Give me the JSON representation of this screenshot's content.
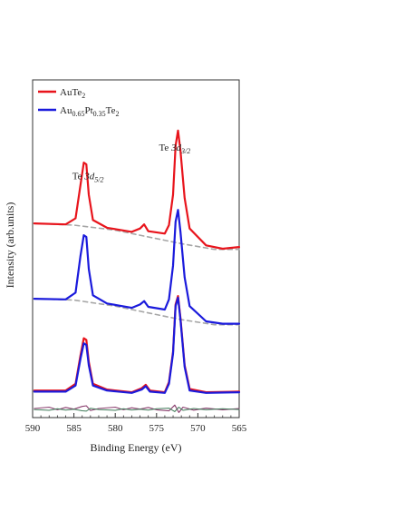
{
  "chart_data": {
    "type": "line",
    "xlabel": "Binding Energy (eV)",
    "ylabel": "Intensity (arb.units)",
    "xlim": [
      590,
      565
    ],
    "x_reversed": true,
    "xticks": [
      590,
      585,
      580,
      575,
      570,
      565
    ],
    "xtick_labels": [
      "590",
      "585",
      "580",
      "575",
      "570",
      "565"
    ],
    "ylim": [
      0,
      10
    ],
    "y_ticks_shown": false,
    "grid": false,
    "legend_position": "top-left",
    "legend": [
      {
        "base": "AuTe",
        "sub": "2",
        "color": "#e8141c",
        "series": "AuTe2"
      },
      {
        "base": "Au",
        "sub": "0.65",
        "mid": "Pt",
        "sub2": "0.35",
        "post": "Te",
        "sub3": "2",
        "color": "#1a1adc",
        "series": "Au0.65Pt0.35Te2"
      }
    ],
    "annotations": [
      {
        "prefix": "Te ",
        "italic": "3d",
        "sub": "5/2",
        "x": 583.3,
        "y": 7.05
      },
      {
        "prefix": "Te ",
        "italic": "3d",
        "sub": "3/2",
        "x": 572.8,
        "y": 7.9
      }
    ],
    "peaks": {
      "AuTe2": {
        "offset": 5.4,
        "background": [
          [
            589.8,
            0.35
          ],
          [
            585,
            0.3
          ],
          [
            580,
            0.15
          ],
          [
            576,
            -0.05
          ],
          [
            572,
            -0.25
          ],
          [
            568,
            -0.42
          ],
          [
            565,
            -0.42
          ]
        ],
        "points": [
          [
            589.8,
            0.35
          ],
          [
            586,
            0.32
          ],
          [
            584.8,
            0.5
          ],
          [
            584.2,
            1.5
          ],
          [
            583.8,
            2.15
          ],
          [
            583.5,
            2.1
          ],
          [
            583.2,
            1.2
          ],
          [
            582.7,
            0.45
          ],
          [
            581,
            0.22
          ],
          [
            578,
            0.1
          ],
          [
            577,
            0.2
          ],
          [
            576.5,
            0.32
          ],
          [
            576,
            0.12
          ],
          [
            574,
            0.05
          ],
          [
            573.5,
            0.3
          ],
          [
            573,
            1.2
          ],
          [
            572.7,
            2.65
          ],
          [
            572.4,
            3.1
          ],
          [
            572.1,
            2.5
          ],
          [
            571.6,
            1.1
          ],
          [
            571,
            0.2
          ],
          [
            569,
            -0.3
          ],
          [
            567,
            -0.4
          ],
          [
            565,
            -0.35
          ]
        ]
      },
      "Au0.65Pt0.35Te2": {
        "offset": 3.2,
        "background": [
          [
            589.8,
            0.32
          ],
          [
            585,
            0.28
          ],
          [
            580,
            0.1
          ],
          [
            576,
            -0.1
          ],
          [
            572,
            -0.3
          ],
          [
            568,
            -0.45
          ],
          [
            565,
            -0.45
          ]
        ],
        "points": [
          [
            589.8,
            0.32
          ],
          [
            586,
            0.3
          ],
          [
            584.8,
            0.5
          ],
          [
            584.2,
            1.6
          ],
          [
            583.8,
            2.2
          ],
          [
            583.5,
            2.15
          ],
          [
            583.2,
            1.2
          ],
          [
            582.7,
            0.42
          ],
          [
            581,
            0.18
          ],
          [
            578,
            0.05
          ],
          [
            577,
            0.15
          ],
          [
            576.5,
            0.25
          ],
          [
            576,
            0.08
          ],
          [
            574,
            0.0
          ],
          [
            573.5,
            0.3
          ],
          [
            573,
            1.3
          ],
          [
            572.7,
            2.6
          ],
          [
            572.4,
            2.95
          ],
          [
            572.1,
            2.3
          ],
          [
            571.6,
            0.95
          ],
          [
            571,
            0.1
          ],
          [
            569,
            -0.35
          ],
          [
            567,
            -0.42
          ],
          [
            565,
            -0.42
          ]
        ]
      },
      "overlay": {
        "offset": 0.75,
        "AuTe2": [
          [
            589.8,
            0.05
          ],
          [
            586,
            0.05
          ],
          [
            584.8,
            0.25
          ],
          [
            584.2,
            1.1
          ],
          [
            583.8,
            1.6
          ],
          [
            583.5,
            1.55
          ],
          [
            583.2,
            0.9
          ],
          [
            582.7,
            0.25
          ],
          [
            581,
            0.08
          ],
          [
            578,
            0.0
          ],
          [
            576.8,
            0.12
          ],
          [
            576.3,
            0.22
          ],
          [
            575.8,
            0.05
          ],
          [
            574,
            0.0
          ],
          [
            573.5,
            0.3
          ],
          [
            573,
            1.2
          ],
          [
            572.7,
            2.6
          ],
          [
            572.4,
            2.85
          ],
          [
            572.1,
            2.2
          ],
          [
            571.6,
            0.8
          ],
          [
            571,
            0.1
          ],
          [
            569,
            0.0
          ],
          [
            565,
            0.02
          ]
        ],
        "Au0.65Pt0.35Te2": [
          [
            589.8,
            0.02
          ],
          [
            586,
            0.02
          ],
          [
            584.8,
            0.2
          ],
          [
            584.2,
            1.0
          ],
          [
            583.8,
            1.45
          ],
          [
            583.5,
            1.4
          ],
          [
            583.2,
            0.8
          ],
          [
            582.7,
            0.2
          ],
          [
            581,
            0.05
          ],
          [
            578,
            -0.02
          ],
          [
            576.8,
            0.08
          ],
          [
            576.3,
            0.18
          ],
          [
            575.8,
            0.02
          ],
          [
            574,
            -0.02
          ],
          [
            573.5,
            0.25
          ],
          [
            573,
            1.15
          ],
          [
            572.7,
            2.55
          ],
          [
            572.4,
            2.8
          ],
          [
            572.1,
            2.15
          ],
          [
            571.6,
            0.75
          ],
          [
            571,
            0.05
          ],
          [
            569,
            -0.02
          ],
          [
            565,
            0.0
          ]
        ]
      },
      "difference": {
        "offset": 0.25,
        "points": [
          [
            589.8,
            0.02
          ],
          [
            588,
            0.06
          ],
          [
            587,
            -0.02
          ],
          [
            586,
            0.05
          ],
          [
            585,
            0.0
          ],
          [
            584,
            0.08
          ],
          [
            583.5,
            0.1
          ],
          [
            583,
            -0.04
          ],
          [
            582,
            0.02
          ],
          [
            580,
            0.06
          ],
          [
            579,
            -0.02
          ],
          [
            578,
            0.04
          ],
          [
            577,
            0.0
          ],
          [
            576,
            0.05
          ],
          [
            575,
            -0.02
          ],
          [
            573.5,
            -0.05
          ],
          [
            572.8,
            0.12
          ],
          [
            572.3,
            -0.1
          ],
          [
            571.8,
            0.06
          ],
          [
            570.5,
            -0.03
          ],
          [
            569,
            0.03
          ],
          [
            567,
            -0.02
          ],
          [
            565,
            0.02
          ]
        ]
      }
    }
  },
  "colors": {
    "AuTe2": "#e8141c",
    "Au0.65Pt0.35Te2": "#1a1adc",
    "background_fit": "#a6a6a6",
    "difference_a": "#8a3e6e",
    "difference_b": "#3e7a58",
    "axis": "#333333"
  }
}
